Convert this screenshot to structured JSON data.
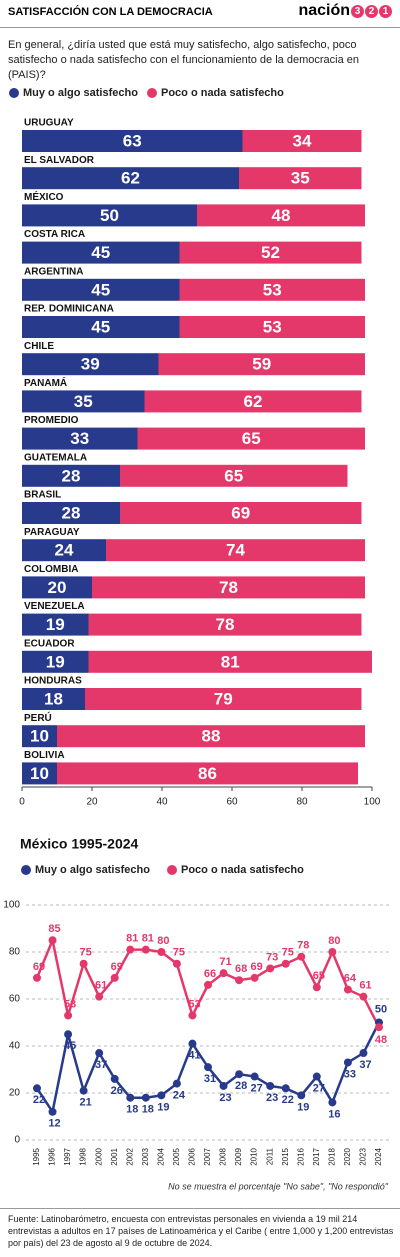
{
  "header": {
    "title": "SATISFACCIÓN CON LA DEMOCRACIA",
    "logo_word": "nación",
    "logo_digits": [
      "3",
      "2",
      "1"
    ]
  },
  "question": "En general, ¿diría usted que está muy satisfecho, algo satisfecho, poco satisfecho o nada satisfecho con el funcionamiento de la democracia en (PAIS)?",
  "chart_data": [
    {
      "type": "bar",
      "orientation": "horizontal",
      "stacked": true,
      "categories": [
        "URUGUAY",
        "EL SALVADOR",
        "MÉXICO",
        "COSTA RICA",
        "ARGENTINA",
        "REP. DOMINICANA",
        "CHILE",
        "PANAMÁ",
        "PROMEDIO",
        "GUATEMALA",
        "BRASIL",
        "PARAGUAY",
        "COLOMBIA",
        "VENEZUELA",
        "ECUADOR",
        "HONDURAS",
        "PERÚ",
        "BOLIVIA"
      ],
      "series": [
        {
          "name": "Muy o algo satisfecho",
          "color": "#283a8c",
          "values": [
            63,
            62,
            50,
            45,
            45,
            45,
            39,
            35,
            33,
            28,
            28,
            24,
            20,
            19,
            19,
            18,
            10,
            10
          ]
        },
        {
          "name": "Poco o nada satisfecho",
          "color": "#e5386a",
          "values": [
            34,
            35,
            48,
            52,
            53,
            53,
            59,
            62,
            65,
            65,
            69,
            74,
            78,
            78,
            81,
            79,
            88,
            86
          ]
        }
      ],
      "xlim": [
        0,
        100
      ],
      "xticks": [
        0,
        20,
        40,
        60,
        80,
        100
      ]
    },
    {
      "type": "line",
      "title": "México 1995-2024",
      "categories": [
        "1995",
        "1996",
        "1997",
        "1998",
        "2000",
        "2001",
        "2002",
        "2003",
        "2004",
        "2005",
        "2006",
        "2007",
        "2008",
        "2009",
        "2010",
        "2011",
        "2015",
        "2016",
        "2017",
        "2018",
        "2020",
        "2023",
        "2024"
      ],
      "series": [
        {
          "name": "Muy o algo satisfecho",
          "color": "#283a8c",
          "values": [
            22,
            12,
            45,
            21,
            37,
            26,
            18,
            18,
            19,
            24,
            41,
            31,
            23,
            28,
            27,
            23,
            22,
            19,
            27,
            16,
            33,
            37,
            50
          ]
        },
        {
          "name": "Poco o nada satisfecho",
          "color": "#e5386a",
          "values": [
            69,
            85,
            53,
            75,
            61,
            69,
            81,
            81,
            80,
            75,
            53,
            66,
            71,
            68,
            69,
            73,
            75,
            78,
            65,
            80,
            64,
            61,
            48
          ]
        }
      ],
      "ylim": [
        0,
        100
      ],
      "yticks": [
        0,
        20,
        40,
        60,
        80,
        100
      ],
      "grid": true,
      "note": "No se muestra el porcentaje \"No sabe\", \"No respondió\""
    }
  ],
  "footer": "Fuente: Latinobarómetro, encuesta con entrevistas personales en vivienda a 19 mil 214 entrevistas a adultos en 17 países de Latinoamérica y el Caribe ( entre 1,000 y 1,200 entrevistas por país) del 23 de agosto al 9 de octubre de 2024."
}
